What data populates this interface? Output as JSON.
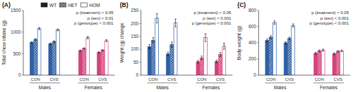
{
  "chart_data": [
    {
      "type": "bar",
      "title": "(A)",
      "ylabel": "Total chow intake (g)",
      "categories": [
        "CON",
        "CVS",
        "CON",
        "CVS"
      ],
      "group_labels": [
        "Males",
        "Females"
      ],
      "series": [
        {
          "name": "WT",
          "color": "#222222",
          "colors": [
            "#2e5fa3",
            "#2e5fa3",
            "#d4427b",
            "#d4427b"
          ],
          "values": [
            760,
            730,
            570,
            530
          ],
          "errors": [
            18,
            18,
            15,
            12
          ]
        },
        {
          "name": "HET",
          "color": "#555555",
          "colors": [
            "#2e5fa3",
            "#2e5fa3",
            "#d4427b",
            "#d4427b"
          ],
          "values": [
            830,
            780,
            620,
            580
          ],
          "errors": [
            18,
            18,
            15,
            12
          ]
        },
        {
          "name": "HOM",
          "color": "white",
          "colors": [
            "#2e5fa3",
            "#2e5fa3",
            "#d4427b",
            "#d4427b"
          ],
          "values": [
            1080,
            1050,
            870,
            800
          ],
          "errors": [
            25,
            22,
            28,
            22
          ]
        }
      ],
      "ylim": [
        0,
        1500
      ],
      "yticks": [
        0,
        500,
        1000,
        1500
      ],
      "annotations": [
        "p (treatment) < 0.05",
        "p (sex) < 0.01",
        "p (genotype) < 0.001"
      ],
      "legend": "upper center",
      "grid": false
    },
    {
      "type": "bar",
      "title": "(B)",
      "ylabel": "Weight (g) change",
      "categories": [
        "CON",
        "CVS",
        "CON",
        "CVS"
      ],
      "group_labels": [
        "Males",
        "Females"
      ],
      "series": [
        {
          "colors": [
            "#2e5fa3",
            "#2e5fa3",
            "#d4427b",
            "#d4427b"
          ],
          "values": [
            110,
            82,
            52,
            53
          ],
          "errors": [
            8,
            7,
            5,
            5
          ]
        },
        {
          "colors": [
            "#2e5fa3",
            "#2e5fa3",
            "#d4427b",
            "#d4427b"
          ],
          "values": [
            135,
            118,
            67,
            80
          ],
          "errors": [
            10,
            10,
            7,
            8
          ]
        },
        {
          "colors": [
            "#2e5fa3",
            "#2e5fa3",
            "#d4427b",
            "#d4427b"
          ],
          "values": [
            220,
            202,
            145,
            112
          ],
          "errors": [
            18,
            15,
            15,
            12
          ]
        }
      ],
      "ylim": [
        0,
        250
      ],
      "yticks": [
        0,
        50,
        100,
        150,
        200,
        250
      ],
      "annotations": [
        "p (treatment) < 0.05",
        "p (sex) < 0.001",
        "p (genotype) < 0.001"
      ],
      "grid": false
    },
    {
      "type": "bar",
      "title": "(C)",
      "ylabel": "Body weight (g)",
      "categories": [
        "CON",
        "CVS",
        "CON",
        "CVS"
      ],
      "group_labels": [
        "Males",
        "Females"
      ],
      "series": [
        {
          "colors": [
            "#2e5fa3",
            "#2e5fa3",
            "#d4427b",
            "#d4427b"
          ],
          "values": [
            430,
            400,
            270,
            265
          ],
          "errors": [
            18,
            15,
            12,
            12
          ]
        },
        {
          "colors": [
            "#2e5fa3",
            "#2e5fa3",
            "#d4427b",
            "#d4427b"
          ],
          "values": [
            470,
            455,
            300,
            295
          ],
          "errors": [
            18,
            15,
            12,
            10
          ]
        },
        {
          "colors": [
            "#2e5fa3",
            "#2e5fa3",
            "#d4427b",
            "#d4427b"
          ],
          "values": [
            650,
            615,
            310,
            300
          ],
          "errors": [
            22,
            20,
            12,
            10
          ]
        }
      ],
      "ylim": [
        0,
        800
      ],
      "yticks": [
        0,
        200,
        400,
        600,
        800
      ],
      "annotations": [
        "p (treatment) < 0.05",
        "p (sex) < 0.001",
        "p (genotype) < 0.001"
      ],
      "grid": false
    }
  ]
}
